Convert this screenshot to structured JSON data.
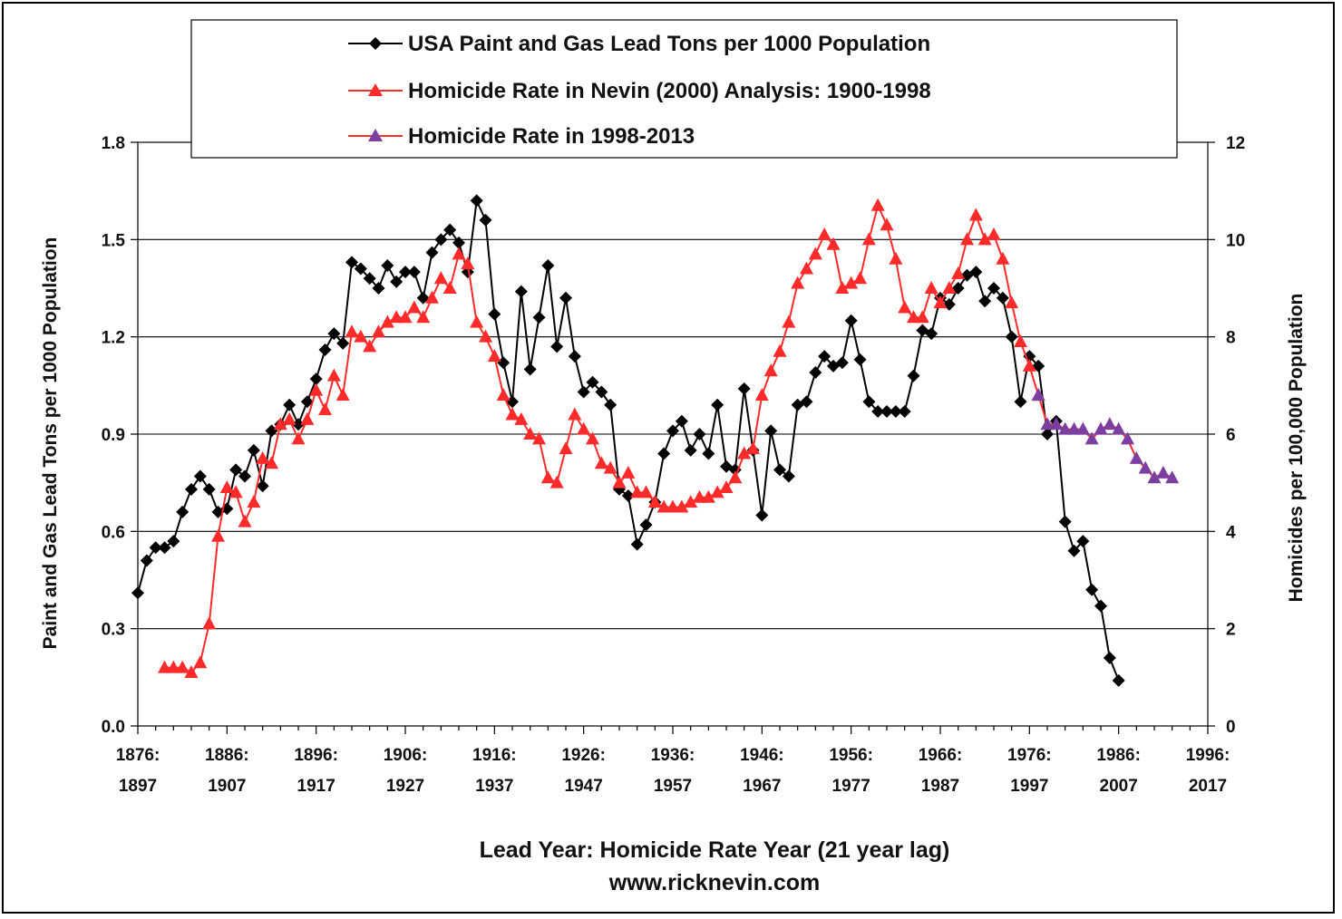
{
  "chart_data": {
    "type": "line",
    "xlabel": "Lead Year: Homicide Rate Year (21 year lag)",
    "source": "www.ricknevin.com",
    "ylabel_left": "Paint and Gas Lead Tons per 1000 Population",
    "ylabel_right": "Homicides per 100,000 Population",
    "xlim": [
      1876,
      1996
    ],
    "ylim_left": [
      0,
      1.8
    ],
    "ylim_right": [
      0,
      12
    ],
    "left_ticks": [
      "0.0",
      "0.3",
      "0.6",
      "0.9",
      "1.2",
      "1.5",
      "1.8"
    ],
    "right_ticks": [
      "0",
      "2",
      "4",
      "6",
      "8",
      "10",
      "12"
    ],
    "x_ticks": [
      {
        "top": "1876:",
        "bottom": "1897"
      },
      {
        "top": "1886:",
        "bottom": "1907"
      },
      {
        "top": "1896:",
        "bottom": "1917"
      },
      {
        "top": "1906:",
        "bottom": "1927"
      },
      {
        "top": "1916:",
        "bottom": "1937"
      },
      {
        "top": "1926:",
        "bottom": "1947"
      },
      {
        "top": "1936:",
        "bottom": "1957"
      },
      {
        "top": "1946:",
        "bottom": "1967"
      },
      {
        "top": "1956:",
        "bottom": "1977"
      },
      {
        "top": "1966:",
        "bottom": "1987"
      },
      {
        "top": "1976:",
        "bottom": "1997"
      },
      {
        "top": "1986:",
        "bottom": "2007"
      },
      {
        "top": "1996:",
        "bottom": "2017"
      }
    ],
    "grid": "horizontal",
    "legend_position": "top-center",
    "series": [
      {
        "name": "USA Paint and Gas Lead Tons per 1000 Population",
        "axis": "left",
        "color": "#000000",
        "marker": "diamond",
        "x_start": 1876,
        "values": [
          0.41,
          0.51,
          0.55,
          0.55,
          0.57,
          0.66,
          0.73,
          0.77,
          0.73,
          0.66,
          0.67,
          0.79,
          0.77,
          0.85,
          0.74,
          0.91,
          0.93,
          0.99,
          0.93,
          1.0,
          1.07,
          1.16,
          1.21,
          1.18,
          1.43,
          1.41,
          1.38,
          1.35,
          1.42,
          1.37,
          1.4,
          1.4,
          1.32,
          1.46,
          1.5,
          1.53,
          1.49,
          1.4,
          1.62,
          1.56,
          1.27,
          1.12,
          1.0,
          1.34,
          1.1,
          1.26,
          1.42,
          1.17,
          1.32,
          1.14,
          1.03,
          1.06,
          1.03,
          0.99,
          0.73,
          0.71,
          0.56,
          0.62,
          0.69,
          0.84,
          0.91,
          0.94,
          0.85,
          0.9,
          0.84,
          0.99,
          0.8,
          0.79,
          1.04,
          0.85,
          0.65,
          0.91,
          0.79,
          0.77,
          0.99,
          1.0,
          1.09,
          1.14,
          1.11,
          1.12,
          1.25,
          1.13,
          1.0,
          0.97,
          0.97,
          0.97,
          0.97,
          1.08,
          1.22,
          1.21,
          1.32,
          1.3,
          1.35,
          1.39,
          1.4,
          1.31,
          1.35,
          1.32,
          1.2,
          1.0,
          1.14,
          1.11,
          0.9,
          0.94,
          0.63,
          0.54,
          0.57,
          0.42,
          0.37,
          0.21,
          0.14
        ]
      },
      {
        "name": "Homicide Rate in Nevin (2000) Analysis: 1900-1998",
        "axis": "right",
        "color": "#ff2a2a",
        "marker": "triangle",
        "x_start": 1879,
        "values": [
          1.2,
          1.2,
          1.2,
          1.1,
          1.3,
          2.1,
          3.9,
          4.9,
          4.8,
          4.2,
          4.6,
          5.5,
          5.4,
          6.2,
          6.3,
          5.9,
          6.3,
          6.9,
          6.5,
          7.2,
          6.8,
          8.1,
          8.0,
          7.8,
          8.1,
          8.3,
          8.4,
          8.4,
          8.6,
          8.4,
          8.8,
          9.2,
          9.0,
          9.7,
          9.5,
          8.3,
          8.0,
          7.6,
          6.8,
          6.4,
          6.3,
          6.0,
          5.9,
          5.1,
          5.0,
          5.7,
          6.4,
          6.1,
          5.9,
          5.4,
          5.3,
          5.0,
          5.2,
          4.8,
          4.8,
          4.6,
          4.5,
          4.5,
          4.5,
          4.6,
          4.7,
          4.7,
          4.8,
          4.9,
          5.1,
          5.6,
          5.7,
          6.8,
          7.3,
          7.7,
          8.3,
          9.1,
          9.4,
          9.7,
          10.1,
          9.9,
          9.0,
          9.1,
          9.2,
          10.0,
          10.7,
          10.3,
          9.6,
          8.6,
          8.4,
          8.4,
          9.0,
          8.7,
          9.0,
          9.3,
          10.0,
          10.5,
          10.0,
          10.1,
          9.6,
          8.7,
          7.9,
          7.4,
          6.8
        ]
      },
      {
        "name": "Homicide Rate in 1998-2013",
        "axis": "right",
        "color": "#ff2a2a",
        "marker_color": "#7b3fa0",
        "marker": "triangle",
        "x_start": 1977,
        "values": [
          6.8,
          6.2,
          6.2,
          6.1,
          6.1,
          6.1,
          5.9,
          6.1,
          6.2,
          6.1,
          5.9,
          5.5,
          5.3,
          5.1,
          5.2,
          5.1
        ]
      }
    ]
  }
}
